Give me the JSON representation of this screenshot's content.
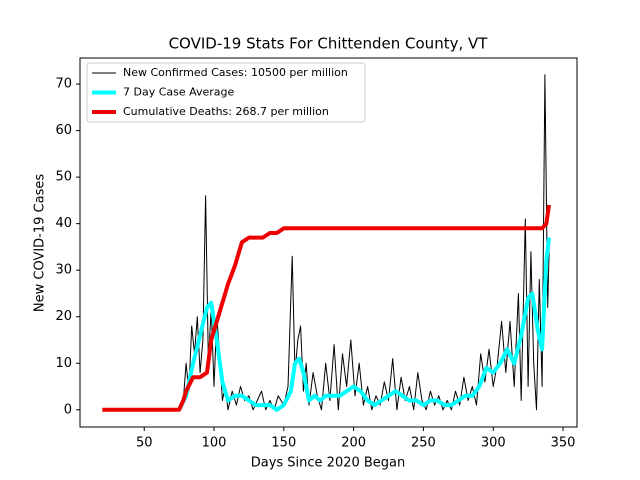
{
  "chart_data": {
    "type": "line",
    "title": "COVID-19 Stats For Chittenden County, VT",
    "x_label": "Days Since 2020 Began",
    "y_label": "New COVID-19 Cases",
    "xlim": [
      4,
      360
    ],
    "ylim": [
      -3.7,
      75.6
    ],
    "xticks": [
      50,
      100,
      150,
      200,
      250,
      300,
      350
    ],
    "yticks": [
      0,
      10,
      20,
      30,
      40,
      50,
      60,
      70
    ],
    "legend": "upper left",
    "series": [
      {
        "name": "New Confirmed Cases: 10500 per million",
        "color": "#000000",
        "width": 1,
        "x": [
          75,
          78,
          80,
          82,
          84,
          86,
          88,
          90,
          92,
          94,
          96,
          98,
          100,
          102,
          104,
          106,
          108,
          110,
          113,
          116,
          119,
          122,
          125,
          128,
          131,
          134,
          137,
          140,
          143,
          146,
          150,
          153,
          156,
          158,
          160,
          162,
          164,
          166,
          168,
          171,
          174,
          177,
          180,
          183,
          186,
          189,
          192,
          195,
          198,
          201,
          204,
          207,
          210,
          213,
          216,
          219,
          222,
          225,
          228,
          231,
          234,
          237,
          240,
          243,
          246,
          249,
          252,
          255,
          258,
          261,
          264,
          267,
          270,
          273,
          276,
          279,
          282,
          285,
          288,
          291,
          294,
          297,
          300,
          303,
          306,
          309,
          312,
          315,
          318,
          320,
          323,
          325,
          327,
          329,
          331,
          333,
          335,
          337,
          339,
          340
        ],
        "values": [
          0,
          2,
          10,
          4,
          18,
          12,
          20,
          8,
          15,
          46,
          10,
          22,
          5,
          20,
          12,
          2,
          5,
          0,
          4,
          1,
          5,
          2,
          3,
          0,
          2,
          4,
          0,
          2,
          0,
          3,
          1,
          5,
          33,
          8,
          15,
          18,
          4,
          10,
          1,
          8,
          3,
          0,
          10,
          2,
          14,
          0,
          12,
          5,
          15,
          3,
          10,
          1,
          5,
          0,
          3,
          1,
          6,
          2,
          11,
          0,
          7,
          2,
          5,
          0,
          8,
          2,
          0,
          4,
          1,
          3,
          0,
          2,
          0,
          4,
          1,
          7,
          2,
          5,
          1,
          12,
          6,
          13,
          5,
          10,
          19,
          8,
          19,
          5,
          25,
          2,
          41,
          5,
          34,
          10,
          0,
          28,
          5,
          72,
          22,
          34
        ]
      },
      {
        "name": "7 Day Case Average",
        "color": "#00ffff",
        "width": 4,
        "x": [
          75,
          80,
          85,
          90,
          95,
          98,
          102,
          106,
          110,
          115,
          120,
          125,
          130,
          135,
          140,
          145,
          150,
          155,
          158,
          161,
          164,
          168,
          172,
          176,
          180,
          185,
          190,
          195,
          200,
          205,
          210,
          215,
          220,
          225,
          230,
          235,
          240,
          245,
          250,
          255,
          260,
          265,
          270,
          275,
          280,
          285,
          290,
          295,
          300,
          305,
          310,
          315,
          320,
          325,
          328,
          332,
          335,
          338,
          340
        ],
        "values": [
          0,
          3,
          10,
          16,
          22,
          23,
          15,
          6,
          2,
          3,
          3,
          2,
          1,
          1,
          1,
          0,
          1,
          4,
          10,
          11,
          8,
          2,
          3,
          2,
          3,
          3,
          3,
          4,
          5,
          4,
          2,
          1,
          2,
          3,
          4,
          3,
          2,
          2,
          1,
          2,
          2,
          1,
          1,
          2,
          3,
          3,
          5,
          9,
          8,
          10,
          13,
          10,
          16,
          24,
          25,
          17,
          13,
          32,
          37
        ]
      },
      {
        "name": "Cumulative Deaths: 268.7 per million",
        "color": "#ee0000",
        "width": 4,
        "x": [
          20,
          75,
          78,
          80,
          85,
          90,
          95,
          98,
          100,
          105,
          110,
          115,
          120,
          125,
          130,
          135,
          140,
          145,
          150,
          330,
          335,
          338,
          340
        ],
        "values": [
          0,
          0,
          2,
          4,
          7,
          7,
          8,
          15,
          17,
          22,
          27,
          31,
          36,
          37,
          37,
          37,
          38,
          38,
          39,
          39,
          39,
          40,
          44
        ]
      }
    ]
  }
}
